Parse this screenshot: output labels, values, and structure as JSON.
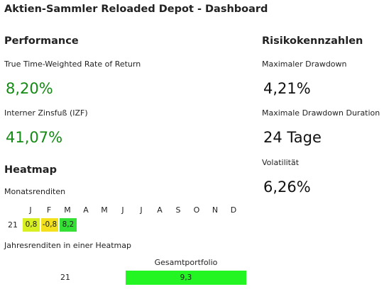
{
  "header": {
    "title": "Aktien-Sammler Reloaded Depot - Dashboard"
  },
  "performance": {
    "heading": "Performance",
    "value_color": "#138a13",
    "metrics": [
      {
        "label": "True Time-Weighted Rate of Return",
        "value": "8,20%"
      },
      {
        "label": "Interner Zinsfuß (IZF)",
        "value": "41,07%"
      }
    ]
  },
  "risk": {
    "heading": "Risikokennzahlen",
    "value_color": "#111111",
    "metrics": [
      {
        "label": "Maximaler Drawdown",
        "value": "4,21%"
      },
      {
        "label": "Maximale Drawdown Duration",
        "value": "24 Tage"
      },
      {
        "label": "Volatilität",
        "value": "6,26%"
      }
    ]
  },
  "heatmap": {
    "heading": "Heatmap",
    "monthly": {
      "label": "Monatsrenditen",
      "months": [
        "J",
        "F",
        "M",
        "A",
        "M",
        "J",
        "J",
        "A",
        "S",
        "O",
        "N",
        "D"
      ],
      "rows": [
        {
          "year": "21",
          "cells": [
            {
              "value": "0,8",
              "color": "#d8ef22"
            },
            {
              "value": "-0,8",
              "color": "#f2e11c"
            },
            {
              "value": "8,2",
              "color": "#33e033"
            }
          ]
        }
      ]
    },
    "yearly": {
      "label": "Jahresrenditen in einer Heatmap",
      "column": "Gesamtportfolio",
      "rows": [
        {
          "year": "21",
          "cells": [
            {
              "value": "9,3",
              "color": "#22f522"
            }
          ]
        }
      ]
    }
  }
}
